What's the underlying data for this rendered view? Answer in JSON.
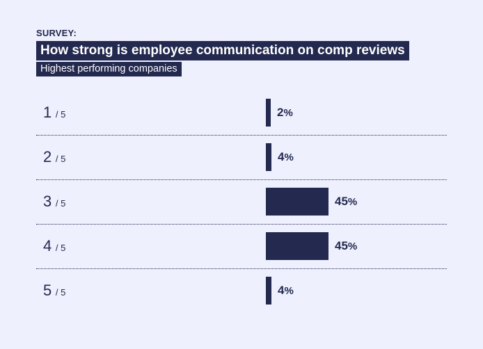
{
  "header": {
    "eyebrow": "SURVEY:",
    "title": "How strong is employee communication on comp reviews",
    "subtitle": "Highest performing companies"
  },
  "colors": {
    "background": "#eef0fd",
    "accent": "#23294f",
    "text_on_accent": "#ffffff"
  },
  "chart_data": {
    "type": "bar",
    "orientation": "horizontal",
    "title": "How strong is employee communication on comp reviews",
    "subtitle": "Highest performing companies",
    "categories": [
      "1",
      "2",
      "3",
      "4",
      "5"
    ],
    "category_suffix": "/ 5",
    "values": [
      2,
      4,
      45,
      45,
      4
    ],
    "value_suffix": "%",
    "xlim": [
      0,
      100
    ]
  }
}
